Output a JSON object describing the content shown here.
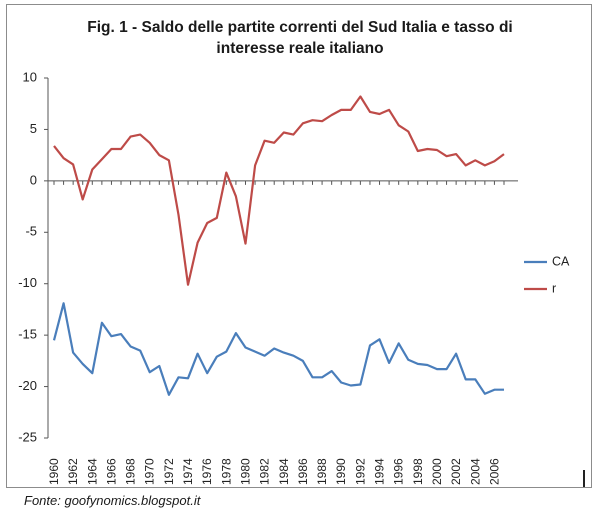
{
  "chart_data": {
    "type": "line",
    "title_line1": "Fig. 1 - Saldo delle partite correnti del Sud Italia e tasso di",
    "title_line2": "interesse reale italiano",
    "xlabel": "",
    "ylabel": "",
    "ylim": [
      -25,
      10
    ],
    "yticks": [
      10,
      5,
      0,
      -5,
      -10,
      -15,
      -20,
      -25
    ],
    "xticks": [
      "1960",
      "1962",
      "1964",
      "1966",
      "1968",
      "1970",
      "1972",
      "1974",
      "1976",
      "1978",
      "1980",
      "1982",
      "1984",
      "1986",
      "1988",
      "1990",
      "1992",
      "1994",
      "1996",
      "1998",
      "2000",
      "2002",
      "2004",
      "2006"
    ],
    "x": [
      1960,
      1961,
      1962,
      1963,
      1964,
      1965,
      1966,
      1967,
      1968,
      1969,
      1970,
      1971,
      1972,
      1973,
      1974,
      1975,
      1976,
      1977,
      1978,
      1979,
      1980,
      1981,
      1982,
      1983,
      1984,
      1985,
      1986,
      1987,
      1988,
      1989,
      1990,
      1991,
      1992,
      1993,
      1994,
      1995,
      1996,
      1997,
      1998,
      1999,
      2000,
      2001,
      2002,
      2003,
      2004,
      2005,
      2006,
      2007
    ],
    "legend_position": "right",
    "series": [
      {
        "name": "CA",
        "color": "#4a7ebb",
        "values": [
          -15.5,
          -11.9,
          -16.7,
          -17.8,
          -18.7,
          -13.8,
          -15.1,
          -14.9,
          -16.1,
          -16.5,
          -18.6,
          -18.0,
          -20.8,
          -19.1,
          -19.2,
          -16.8,
          -18.7,
          -17.1,
          -16.6,
          -14.8,
          -16.2,
          -16.6,
          -17.0,
          -16.3,
          -16.7,
          -17.0,
          -17.5,
          -19.1,
          -19.1,
          -18.5,
          -19.6,
          -19.9,
          -19.8,
          -16.0,
          -15.4,
          -17.7,
          -15.8,
          -17.4,
          -17.8,
          -17.9,
          -18.3,
          -18.3,
          -16.8,
          -19.3,
          -19.3,
          -20.7,
          -20.3,
          -20.3
        ]
      },
      {
        "name": "r",
        "color": "#be4b48",
        "values": [
          3.4,
          2.2,
          1.6,
          -1.8,
          1.1,
          2.1,
          3.1,
          3.1,
          4.3,
          4.5,
          3.7,
          2.5,
          2.0,
          -3.3,
          -10.1,
          -6.0,
          -4.1,
          -3.6,
          0.8,
          -1.5,
          -6.1,
          1.5,
          3.9,
          3.7,
          4.7,
          4.5,
          5.6,
          5.9,
          5.8,
          6.4,
          6.9,
          6.9,
          8.2,
          6.7,
          6.5,
          6.9,
          5.4,
          4.8,
          2.9,
          3.1,
          3.0,
          2.4,
          2.6,
          1.5,
          2.0,
          1.5,
          1.9,
          2.6
        ]
      }
    ]
  },
  "source_text": "Fonte: goofynomics.blogspot.it"
}
